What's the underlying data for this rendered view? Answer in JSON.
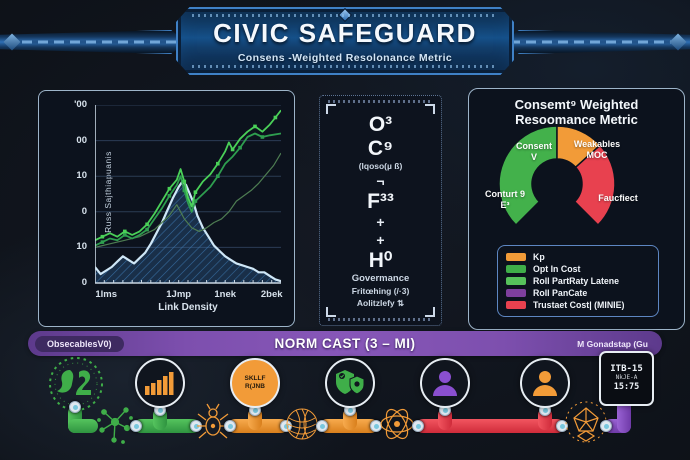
{
  "header": {
    "title": "CIVIC SAFEGUARD",
    "subtitle": "Consens -Weighted Resolonance Metric"
  },
  "palette": {
    "green": "#3fae49",
    "bright_green": "#4ad058",
    "mid_green": "#2e9e4f",
    "dark_green": "#4e7d52",
    "orange": "#f29b38",
    "red": "#e8414f",
    "purple": "#7d4fae",
    "blue_line": "#cfe7f7",
    "banner_blue": "#2f6fb4",
    "panel_border": "#9db4c9"
  },
  "left_chart": {
    "y_title": "Russ Sajthiapuanis",
    "y_ticks": [
      "'00",
      "00",
      "10",
      "0",
      "10",
      "0"
    ],
    "x_ticks": [
      "1lms",
      "1Jmp",
      "1nek",
      "2bek"
    ],
    "x_tick_pos": [
      6,
      45,
      70,
      95
    ],
    "x_title": "Link Density"
  },
  "center_panel": {
    "lines": [
      {
        "text": "O³"
      },
      {
        "text": "C⁹"
      },
      {
        "text": "(lqoso(µ ß)"
      },
      {
        "text": "¬"
      },
      {
        "text": "F³³"
      },
      {
        "text": "+"
      },
      {
        "text": "+"
      },
      {
        "text": "H⁰"
      },
      {
        "text": "Govermance"
      },
      {
        "text": "Fritœhing (/·3)"
      },
      {
        "text": "Aolitzlefy ⇅"
      }
    ]
  },
  "right_panel": {
    "title_line1": "Consemt⁹ Weighted",
    "title_line2": "Resoomance Metric",
    "slice_labels": {
      "green_top": {
        "lines": [
          "Consent",
          "V"
        ]
      },
      "green_left": {
        "lines": [
          "Conturt 9",
          "E³"
        ]
      },
      "orange": {
        "lines": [
          "Weakables",
          "MOC"
        ]
      },
      "red": {
        "lines": [
          "Faucfiect"
        ]
      }
    },
    "legend": [
      {
        "color": "#f29b38",
        "label": "Kp"
      },
      {
        "color": "#3fae49",
        "label": "Opt In Cost"
      },
      {
        "color": "#56c15b",
        "label": "Roll PartRaty Latene"
      },
      {
        "color": "#7e3f9d",
        "label": "Roll PanCate"
      },
      {
        "color": "#e8414f",
        "label": "Trustaet Cost| (MINIE)"
      }
    ]
  },
  "banner": {
    "left": "ObsecablesV0)",
    "center": "NORM CAST (3 – MI)",
    "right": "M Gonadstap (Gu"
  },
  "pipeline": {
    "skllf_label": {
      "lines": [
        "SKLLF",
        "R(JNB"
      ]
    },
    "badge": {
      "lines": [
        "ITB-15",
        "NkJE-A",
        "15:75"
      ]
    }
  },
  "chart_data": [
    {
      "type": "line",
      "title": "",
      "xlabel": "Link Density",
      "ylabel": "Russ Sajthiapuanis",
      "x_tick_labels": [
        "1lms",
        "1Jmp",
        "1nek",
        "2bek"
      ],
      "y_tick_labels": [
        "0",
        "10",
        "0",
        "10",
        "00",
        "'00"
      ],
      "grid": true,
      "note": "x and y are percent of plot area (0-100), y up",
      "series": [
        {
          "name": "area-lightblue",
          "color": "#cfe7f7",
          "area": true,
          "markers": false,
          "points": [
            [
              0,
              9
            ],
            [
              3,
              5
            ],
            [
              6,
              7
            ],
            [
              9,
              9
            ],
            [
              12,
              12
            ],
            [
              15,
              15
            ],
            [
              18,
              13
            ],
            [
              21,
              11
            ],
            [
              24,
              14
            ],
            [
              27,
              17
            ],
            [
              30,
              22
            ],
            [
              33,
              28
            ],
            [
              36,
              34
            ],
            [
              39,
              41
            ],
            [
              42,
              48
            ],
            [
              45,
              54
            ],
            [
              47,
              57
            ],
            [
              49,
              55
            ],
            [
              51,
              50
            ],
            [
              53,
              45
            ],
            [
              55,
              38
            ],
            [
              58,
              31
            ],
            [
              61,
              26
            ],
            [
              64,
              21
            ],
            [
              67,
              18
            ],
            [
              70,
              15
            ],
            [
              73,
              13
            ],
            [
              76,
              11
            ],
            [
              79,
              10
            ],
            [
              82,
              9
            ],
            [
              85,
              8
            ],
            [
              88,
              6
            ],
            [
              91,
              6
            ],
            [
              94,
              4
            ],
            [
              97,
              2
            ],
            [
              100,
              1
            ]
          ]
        },
        {
          "name": "dark-green",
          "color": "#4e7d52",
          "area": false,
          "markers": false,
          "points": [
            [
              0,
              20
            ],
            [
              8,
              22
            ],
            [
              16,
              24
            ],
            [
              24,
              26
            ],
            [
              32,
              30
            ],
            [
              40,
              38
            ],
            [
              44,
              44
            ],
            [
              48,
              36
            ],
            [
              52,
              31
            ],
            [
              56,
              29
            ],
            [
              60,
              31
            ],
            [
              64,
              34
            ],
            [
              68,
              36
            ],
            [
              72,
              40
            ],
            [
              76,
              46
            ],
            [
              80,
              49
            ],
            [
              84,
              52
            ],
            [
              88,
              56
            ],
            [
              92,
              61
            ],
            [
              96,
              66
            ],
            [
              100,
              73
            ]
          ]
        },
        {
          "name": "mid-green",
          "color": "#2e9e4f",
          "area": false,
          "markers": true,
          "points": [
            [
              0,
              21
            ],
            [
              4,
              23
            ],
            [
              8,
              25
            ],
            [
              12,
              24
            ],
            [
              16,
              27
            ],
            [
              20,
              25
            ],
            [
              24,
              27
            ],
            [
              28,
              30
            ],
            [
              32,
              36
            ],
            [
              36,
              42
            ],
            [
              40,
              49
            ],
            [
              44,
              55
            ],
            [
              46,
              60
            ],
            [
              48,
              52
            ],
            [
              50,
              45
            ],
            [
              52,
              40
            ],
            [
              54,
              46
            ],
            [
              58,
              50
            ],
            [
              62,
              54
            ],
            [
              66,
              60
            ],
            [
              70,
              67
            ],
            [
              74,
              71
            ],
            [
              78,
              76
            ],
            [
              82,
              82
            ],
            [
              86,
              84
            ],
            [
              90,
              82
            ],
            [
              94,
              83
            ],
            [
              100,
              84
            ]
          ]
        },
        {
          "name": "bright-green",
          "color": "#4ad058",
          "area": false,
          "markers": true,
          "points": [
            [
              0,
              24
            ],
            [
              4,
              26
            ],
            [
              8,
              28
            ],
            [
              12,
              26
            ],
            [
              16,
              29
            ],
            [
              20,
              27
            ],
            [
              24,
              29
            ],
            [
              28,
              33
            ],
            [
              32,
              39
            ],
            [
              36,
              46
            ],
            [
              40,
              53
            ],
            [
              44,
              58
            ],
            [
              46,
              64
            ],
            [
              48,
              57
            ],
            [
              50,
              48
            ],
            [
              52,
              43
            ],
            [
              54,
              51
            ],
            [
              58,
              57
            ],
            [
              62,
              61
            ],
            [
              66,
              67
            ],
            [
              70,
              74
            ],
            [
              72,
              79
            ],
            [
              74,
              75
            ],
            [
              78,
              81
            ],
            [
              82,
              85
            ],
            [
              86,
              88
            ],
            [
              90,
              85
            ],
            [
              94,
              89
            ],
            [
              97,
              93
            ],
            [
              100,
              97
            ]
          ]
        }
      ]
    },
    {
      "type": "pie",
      "subtype": "gauge-donut",
      "title": "Consemt⁹ Weighted Resoomance Metric",
      "note": "angles in degrees clockwise from 12 o'clock; gauge spans -135 to 135",
      "slices": [
        {
          "label": "Consent V / Conturt 9 E³",
          "color": "#43b14b",
          "start": -135,
          "end": 0,
          "value_deg": 135
        },
        {
          "label": "Weakables MOC",
          "color": "#f29b38",
          "start": 0,
          "end": 48,
          "value_deg": 48
        },
        {
          "label": "Faucfiect",
          "color": "#e8414f",
          "start": 48,
          "end": 135,
          "value_deg": 87
        }
      ],
      "legend_position": "bottom"
    }
  ]
}
